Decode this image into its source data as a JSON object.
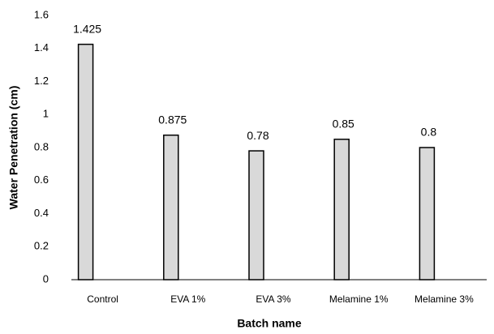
{
  "chart_data": {
    "type": "bar",
    "x_label": "Batch name",
    "y_label": "Water Penetration (cm)",
    "categories": [
      "Control",
      "EVA 1%",
      "EVA 3%",
      "Melamine 1%",
      "Melamine 3%"
    ],
    "values": [
      1.425,
      0.875,
      0.78,
      0.85,
      0.8
    ],
    "color": "#d9d9d9",
    "ylim": [
      0,
      1.6
    ],
    "yticks": [
      0,
      0.2,
      0.4,
      0.6,
      0.8,
      1,
      1.2,
      1.4,
      1.6
    ],
    "grid": false
  }
}
